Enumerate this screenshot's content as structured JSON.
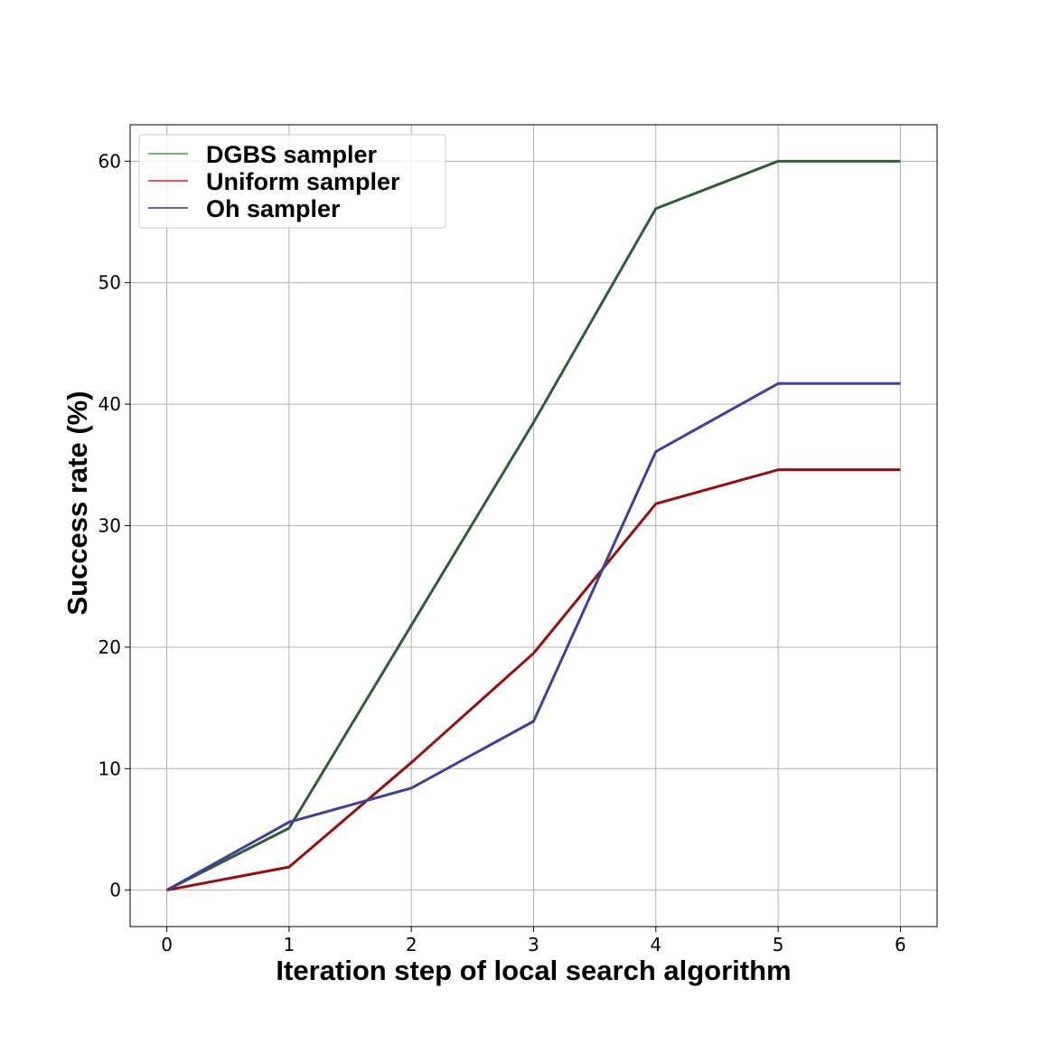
{
  "chart_data": {
    "type": "line",
    "xlabel": "Iteration step of local search algorithm",
    "ylabel": "Success rate (%)",
    "x": [
      0,
      1,
      2,
      3,
      4,
      5,
      6
    ],
    "xlim": [
      -0.3,
      6.3
    ],
    "ylim": [
      -3,
      63
    ],
    "xticks": [
      "0",
      "1",
      "2",
      "3",
      "4",
      "5",
      "6"
    ],
    "yticks": [
      "0",
      "10",
      "20",
      "30",
      "40",
      "50",
      "60"
    ],
    "grid": true,
    "legend_position": "top-left",
    "series": [
      {
        "name": "DGBS sampler",
        "values": [
          0,
          5.1,
          21.8,
          38.5,
          56.1,
          60.0,
          60.0
        ],
        "color": "#2f5d3a",
        "legend_color": "#3c9b3c"
      },
      {
        "name": "Uniform sampler",
        "values": [
          0,
          1.9,
          10.5,
          19.5,
          31.8,
          34.6,
          34.6
        ],
        "color": "#9b0d0d",
        "legend_color": "#e02020"
      },
      {
        "name": "Oh sampler",
        "values": [
          0,
          5.6,
          8.4,
          13.9,
          36.1,
          41.7,
          41.7
        ],
        "color": "#3f3f9f",
        "legend_color": "#2b2bbf"
      }
    ]
  }
}
